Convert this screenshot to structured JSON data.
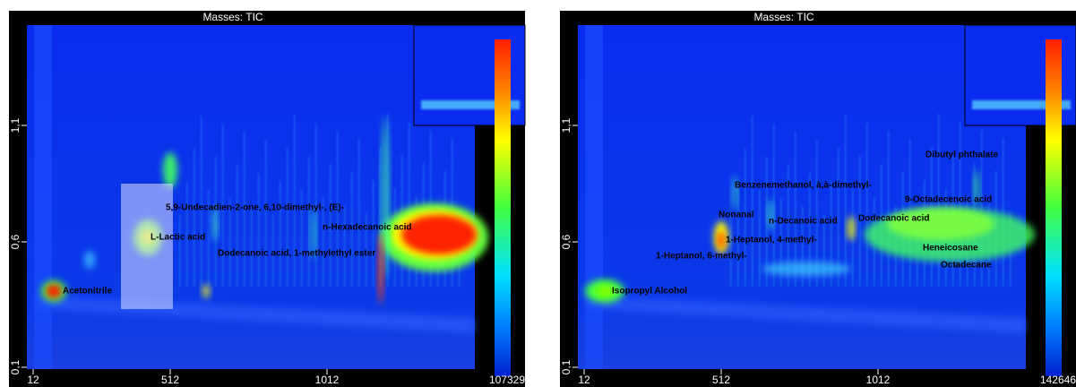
{
  "panels": [
    {
      "title": "Masses: TIC",
      "x_ticks": [
        "12",
        "512",
        "1012"
      ],
      "y_ticks": [
        "0,1",
        "0,6",
        "1,1"
      ],
      "scale_max": "107329",
      "compounds": [
        "Acetonitrile",
        "L-Lactic acid",
        "5,9-Undecadien-2-one, 6,10-dimethyl-, (E)-",
        "n-Hexadecanoic acid",
        "Dodecanoic acid, 1-methylethyl ester"
      ]
    },
    {
      "title": "Masses: TIC",
      "x_ticks": [
        "12",
        "512",
        "1012"
      ],
      "y_ticks": [
        "0,1",
        "0,6",
        "1,1"
      ],
      "scale_max": "142646",
      "compounds": [
        "Isopropyl Alcohol",
        "1-Heptanol, 6-methyl-",
        "Nonanal",
        "1-Heptanol, 4-methyl-",
        "Benzenemethanol, à,à-dimethyl-",
        "n-Decanoic acid",
        "Dodecanoic acid",
        "Dibutyl phthalate",
        "9-Octadecenoic acid",
        "Heneicosane",
        "Octadecane"
      ]
    }
  ]
}
